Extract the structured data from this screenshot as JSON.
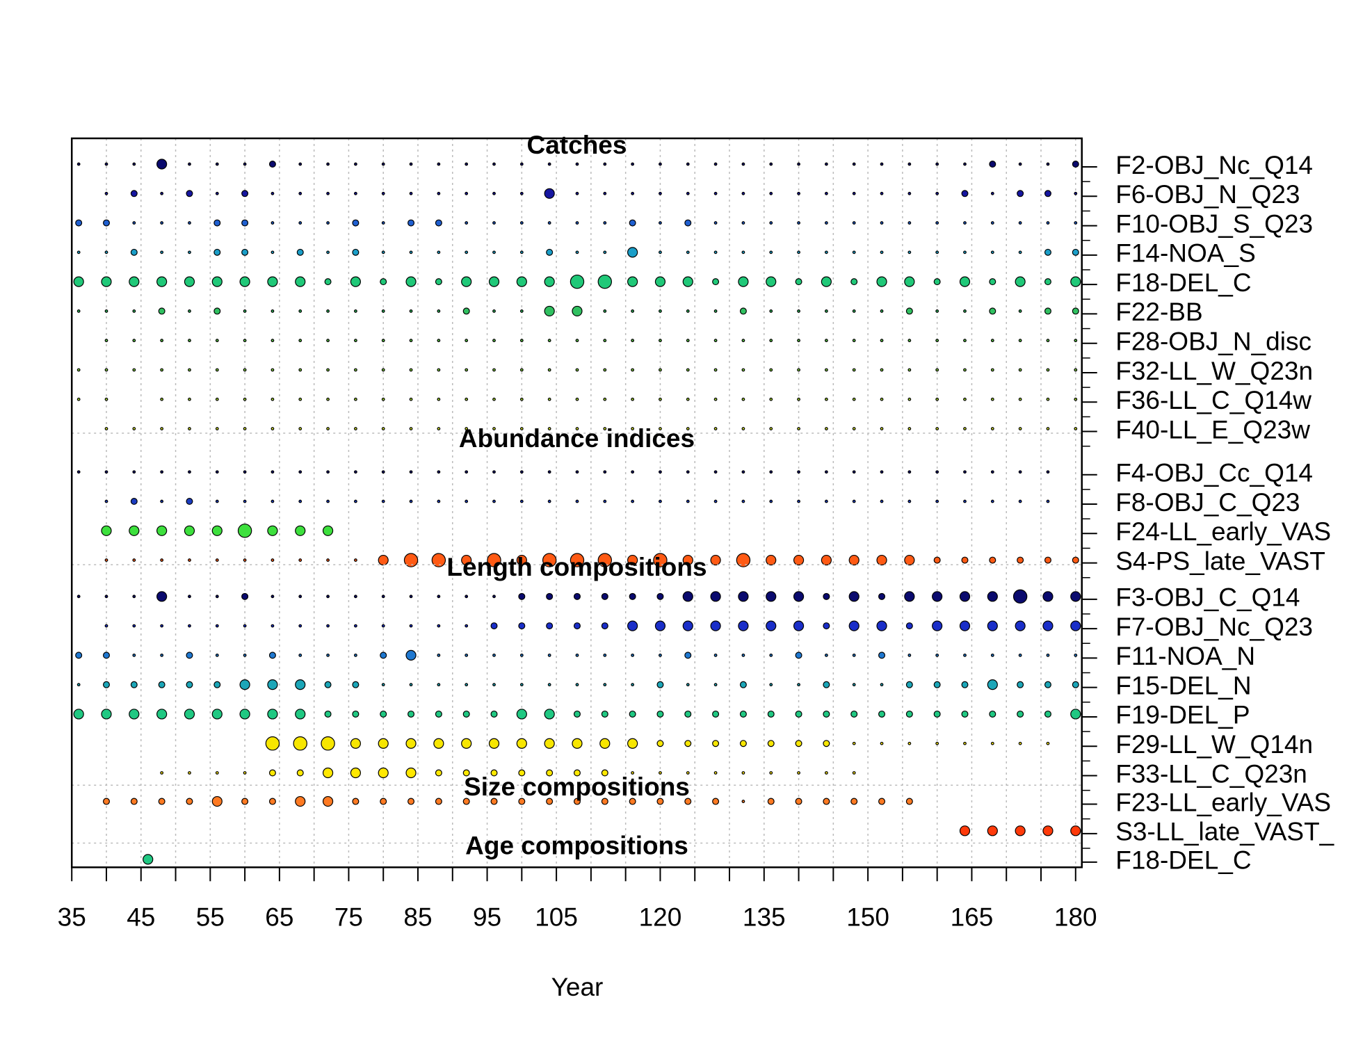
{
  "chart_data": {
    "type": "bubble",
    "xlabel": "Year",
    "xlim": [
      35,
      180.9
    ],
    "xticks": [
      35,
      45,
      55,
      65,
      75,
      85,
      95,
      105,
      120,
      135,
      150,
      165,
      180
    ],
    "xminorticks": [
      40,
      50,
      60,
      70,
      80,
      90,
      100,
      110,
      115,
      125,
      130,
      140,
      145,
      155,
      160,
      170,
      175
    ],
    "grid": true,
    "x": [
      36,
      40,
      44,
      48,
      52,
      56,
      60,
      64,
      68,
      72,
      76,
      80,
      84,
      88,
      92,
      96,
      100,
      104,
      108,
      112,
      116,
      120,
      124,
      128,
      132,
      136,
      140,
      144,
      148,
      152,
      156,
      160,
      164,
      168,
      172,
      176,
      180
    ],
    "sections": [
      {
        "title": "Catches",
        "series": [
          {
            "name": "F2-OBJ_Nc_Q14",
            "color": "#0a0a6e",
            "values": [
              0,
              0,
              0,
              2,
              0,
              0,
              0,
              1,
              0,
              0,
              0,
              0,
              0,
              0,
              0,
              0,
              0,
              0,
              0,
              0,
              0,
              0,
              0,
              0,
              0,
              0,
              0,
              0,
              0,
              0,
              0,
              0,
              0,
              1,
              0,
              0,
              1
            ]
          },
          {
            "name": "F6-OBJ_N_Q23",
            "color": "#1616a0",
            "values": [
              null,
              0,
              1,
              0,
              1,
              0,
              1,
              0,
              0,
              0,
              0,
              0,
              0,
              0,
              0,
              0,
              0,
              2,
              0,
              0,
              0,
              0,
              0,
              0,
              0,
              0,
              0,
              0,
              0,
              0,
              0,
              0,
              1,
              0,
              1,
              1,
              0
            ]
          },
          {
            "name": "F10-OBJ_S_Q23",
            "color": "#1f5fd0",
            "values": [
              1,
              1,
              0,
              0,
              0,
              1,
              1,
              0,
              0,
              0,
              1,
              0,
              1,
              1,
              0,
              0,
              0,
              0,
              0,
              0,
              1,
              0,
              1,
              0,
              0,
              0,
              0,
              0,
              0,
              0,
              0,
              0,
              0,
              0,
              0,
              0,
              0
            ]
          },
          {
            "name": "F14-NOA_S",
            "color": "#1a9ec8",
            "values": [
              0,
              0,
              1,
              0,
              0,
              1,
              1,
              0,
              1,
              0,
              1,
              0,
              0,
              0,
              0,
              0,
              0,
              1,
              0,
              0,
              2,
              0,
              0,
              0,
              0,
              0,
              0,
              0,
              0,
              0,
              0,
              0,
              0,
              0,
              0,
              1,
              1
            ]
          },
          {
            "name": "F18-DEL_C",
            "color": "#20c878",
            "values": [
              2,
              2,
              2,
              2,
              2,
              2,
              2,
              2,
              2,
              1,
              2,
              1,
              2,
              1,
              2,
              2,
              2,
              2,
              3,
              3,
              2,
              2,
              2,
              1,
              2,
              2,
              1,
              2,
              1,
              2,
              2,
              1,
              2,
              1,
              2,
              1,
              2
            ]
          },
          {
            "name": "F22-BB",
            "color": "#30c060",
            "values": [
              0,
              0,
              0,
              1,
              0,
              1,
              0,
              0,
              0,
              0,
              0,
              0,
              0,
              0,
              1,
              0,
              0,
              2,
              2,
              0,
              0,
              0,
              0,
              0,
              1,
              0,
              0,
              0,
              0,
              0,
              1,
              0,
              0,
              1,
              0,
              1,
              1
            ]
          },
          {
            "name": "F28-OBJ_N_disc",
            "color": "#55c040",
            "values": [
              null,
              0,
              0,
              0,
              0,
              0,
              0,
              0,
              0,
              0,
              0,
              0,
              0,
              0,
              0,
              0,
              0,
              0,
              0,
              0,
              0,
              0,
              0,
              0,
              0,
              0,
              0,
              0,
              0,
              0,
              0,
              0,
              0,
              0,
              0,
              0,
              0
            ]
          },
          {
            "name": "F32-LL_W_Q23n",
            "color": "#7fd03a",
            "values": [
              0,
              0,
              0,
              0,
              0,
              0,
              0,
              0,
              0,
              0,
              0,
              0,
              0,
              0,
              0,
              0,
              0,
              0,
              0,
              0,
              0,
              0,
              0,
              0,
              0,
              0,
              0,
              0,
              0,
              0,
              0,
              0,
              0,
              0,
              0,
              0,
              0
            ]
          },
          {
            "name": "F36-LL_C_Q14w",
            "color": "#a8dc30",
            "values": [
              0,
              0,
              null,
              0,
              0,
              0,
              0,
              0,
              0,
              0,
              0,
              0,
              0,
              0,
              0,
              0,
              0,
              0,
              0,
              0,
              0,
              0,
              0,
              0,
              0,
              0,
              0,
              0,
              0,
              0,
              0,
              0,
              0,
              0,
              0,
              0,
              0
            ]
          },
          {
            "name": "F40-LL_E_Q23w",
            "color": "#d4e628",
            "values": [
              null,
              0,
              0,
              0,
              0,
              0,
              0,
              0,
              0,
              0,
              0,
              0,
              0,
              0,
              0,
              0,
              0,
              0,
              0,
              0,
              0,
              0,
              0,
              0,
              0,
              0,
              0,
              0,
              0,
              0,
              0,
              0,
              0,
              0,
              0,
              0,
              0
            ]
          }
        ]
      },
      {
        "title": "Abundance indices",
        "series": [
          {
            "name": "F4-OBJ_Cc_Q14",
            "color": "#0a0a6e",
            "values": [
              0,
              0,
              0,
              0,
              0,
              0,
              0,
              0,
              0,
              0,
              0,
              0,
              0,
              0,
              0,
              0,
              0,
              0,
              0,
              0,
              0,
              0,
              0,
              0,
              0,
              0,
              0,
              0,
              0,
              0,
              0,
              0,
              0,
              0,
              0,
              0,
              null
            ]
          },
          {
            "name": "F8-OBJ_C_Q23",
            "color": "#1a3cc0",
            "values": [
              null,
              0,
              1,
              0,
              1,
              0,
              0,
              0,
              0,
              0,
              0,
              0,
              0,
              0,
              0,
              0,
              0,
              0,
              0,
              0,
              0,
              0,
              0,
              0,
              0,
              0,
              0,
              0,
              0,
              0,
              0,
              0,
              0,
              0,
              0,
              0,
              null
            ]
          },
          {
            "name": "F24-LL_early_VAS",
            "color": "#3de03d",
            "values": [
              null,
              2,
              2,
              2,
              2,
              2,
              3,
              2,
              2,
              2,
              null,
              null,
              null,
              null,
              null,
              null,
              null,
              null,
              null,
              null,
              null,
              null,
              null,
              null,
              null,
              null,
              null,
              null,
              null,
              null,
              null,
              null,
              null,
              null,
              null,
              null,
              null
            ]
          },
          {
            "name": "S4-PS_late_VAST",
            "color": "#ff5a14",
            "values": [
              null,
              0,
              0,
              0,
              0,
              0,
              0,
              0,
              0,
              0,
              0,
              2,
              3,
              3,
              2,
              3,
              2,
              3,
              3,
              3,
              2,
              3,
              2,
              2,
              3,
              2,
              2,
              2,
              2,
              2,
              2,
              1,
              1,
              1,
              1,
              1,
              1
            ]
          }
        ]
      },
      {
        "title": "Length compositions",
        "series": [
          {
            "name": "F3-OBJ_C_Q14",
            "color": "#0a0a6e",
            "values": [
              0,
              0,
              0,
              2,
              0,
              0,
              1,
              0,
              0,
              0,
              0,
              0,
              0,
              0,
              0,
              0,
              1,
              1,
              1,
              1,
              1,
              1,
              2,
              2,
              2,
              2,
              2,
              1,
              2,
              1,
              2,
              2,
              2,
              2,
              3,
              2,
              2
            ]
          },
          {
            "name": "F7-OBJ_Nc_Q23",
            "color": "#1a2ec8",
            "values": [
              null,
              0,
              0,
              0,
              0,
              0,
              0,
              0,
              0,
              0,
              0,
              0,
              0,
              0,
              0,
              1,
              1,
              1,
              1,
              1,
              2,
              2,
              2,
              2,
              2,
              2,
              2,
              1,
              2,
              2,
              1,
              2,
              2,
              2,
              2,
              2,
              2
            ]
          },
          {
            "name": "F11-NOA_N",
            "color": "#1f78d0",
            "values": [
              1,
              1,
              0,
              0,
              1,
              0,
              0,
              1,
              0,
              0,
              0,
              1,
              2,
              0,
              0,
              0,
              0,
              0,
              0,
              0,
              0,
              0,
              1,
              0,
              0,
              0,
              1,
              0,
              0,
              1,
              0,
              0,
              0,
              0,
              0,
              0,
              0
            ]
          },
          {
            "name": "F15-DEL_N",
            "color": "#1ca6b8",
            "values": [
              0,
              1,
              1,
              1,
              1,
              1,
              2,
              2,
              2,
              1,
              1,
              0,
              0,
              0,
              0,
              0,
              0,
              0,
              0,
              0,
              0,
              1,
              0,
              0,
              1,
              0,
              0,
              1,
              0,
              0,
              1,
              1,
              1,
              2,
              1,
              1,
              1
            ]
          },
          {
            "name": "F19-DEL_P",
            "color": "#20c882",
            "values": [
              2,
              2,
              2,
              2,
              2,
              2,
              2,
              2,
              2,
              1,
              1,
              1,
              1,
              1,
              1,
              1,
              2,
              2,
              1,
              1,
              1,
              1,
              1,
              1,
              1,
              1,
              1,
              1,
              1,
              1,
              1,
              1,
              1,
              1,
              1,
              1,
              2
            ]
          },
          {
            "name": "F29-LL_W_Q14n",
            "color": "#f7e600",
            "values": [
              null,
              null,
              null,
              null,
              null,
              null,
              null,
              3,
              3,
              3,
              2,
              2,
              2,
              2,
              2,
              2,
              2,
              2,
              2,
              2,
              2,
              1,
              1,
              1,
              1,
              1,
              1,
              1,
              0,
              0,
              0,
              0,
              0,
              0,
              0,
              0,
              null
            ]
          },
          {
            "name": "F33-LL_C_Q23n",
            "color": "#ffe800",
            "values": [
              null,
              null,
              null,
              0,
              0,
              0,
              0,
              1,
              1,
              2,
              2,
              2,
              2,
              1,
              1,
              1,
              1,
              1,
              1,
              1,
              0,
              0,
              0,
              0,
              0,
              0,
              0,
              0,
              0,
              null,
              null,
              null,
              null,
              null,
              null,
              null,
              null
            ]
          }
        ]
      },
      {
        "title": "Size compositions",
        "series": [
          {
            "name": "F23-LL_early_VAS",
            "color": "#ff7a22",
            "values": [
              null,
              1,
              1,
              1,
              1,
              2,
              1,
              1,
              2,
              2,
              1,
              1,
              1,
              1,
              1,
              1,
              1,
              1,
              1,
              1,
              1,
              1,
              1,
              1,
              0,
              1,
              1,
              1,
              1,
              1,
              1,
              null,
              null,
              null,
              null,
              null,
              null
            ]
          },
          {
            "name": "S3-LL_late_VAST_",
            "color": "#ff3a0a",
            "values": [
              null,
              null,
              null,
              null,
              null,
              null,
              null,
              null,
              null,
              null,
              null,
              null,
              null,
              null,
              null,
              null,
              null,
              null,
              null,
              null,
              null,
              null,
              null,
              null,
              null,
              null,
              null,
              null,
              null,
              null,
              null,
              null,
              2,
              2,
              2,
              2,
              2
            ]
          }
        ]
      },
      {
        "title": "Age compositions",
        "series": [
          {
            "name": "F18-DEL_C",
            "color": "#20c882",
            "x": [
              46
            ],
            "values": [
              2
            ]
          }
        ]
      }
    ]
  }
}
